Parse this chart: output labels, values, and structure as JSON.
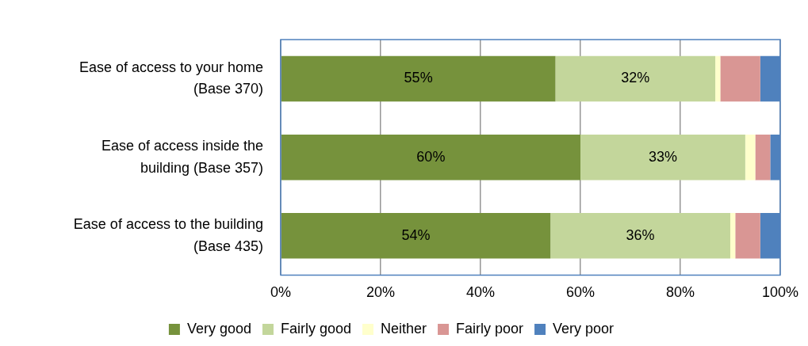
{
  "chart_data": {
    "type": "bar",
    "orientation": "horizontal",
    "stacked": true,
    "categories": [
      "Ease of access to your home\n(Base 370)",
      "Ease of access inside the\nbuilding (Base 357)",
      "Ease of access to the building\n(Base 435)"
    ],
    "series": [
      {
        "name": "Very good",
        "color": "#76923c",
        "values": [
          55,
          60,
          54
        ],
        "value_labels": [
          "55%",
          "60%",
          "54%"
        ]
      },
      {
        "name": "Fairly good",
        "color": "#c3d69b",
        "values": [
          32,
          33,
          36
        ],
        "value_labels": [
          "32%",
          "33%",
          "36%"
        ]
      },
      {
        "name": "Neither",
        "color": "#ffffcc",
        "values": [
          1,
          2,
          1
        ]
      },
      {
        "name": "Fairly poor",
        "color": "#d99694",
        "values": [
          8,
          3,
          5
        ]
      },
      {
        "name": "Very poor",
        "color": "#4f81bd",
        "values": [
          4,
          2,
          4
        ]
      }
    ],
    "xlim": [
      0,
      100
    ],
    "xticks": [
      {
        "value": 0,
        "label": "0%"
      },
      {
        "value": 20,
        "label": "20%"
      },
      {
        "value": 40,
        "label": "40%"
      },
      {
        "value": 60,
        "label": "60%"
      },
      {
        "value": 80,
        "label": "80%"
      },
      {
        "value": 100,
        "label": "100%"
      }
    ],
    "grid": "x",
    "legend": "bottom"
  }
}
